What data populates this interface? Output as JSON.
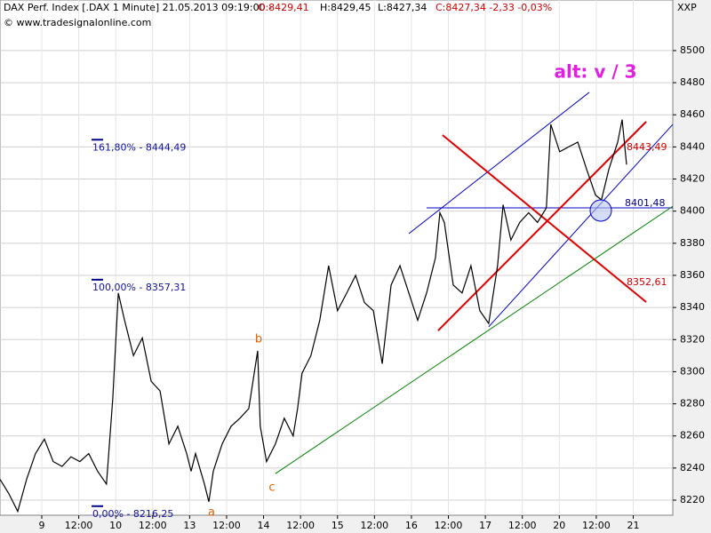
{
  "chart_data": {
    "type": "line",
    "title": "DAX Perf. Index [.DAX  1 Minute] 21.05.2013 09:19:00 -",
    "quote_open": "O:8429,41",
    "quote_high": "H:8429,45",
    "quote_low": "L:8427,34",
    "quote_close": "C:8427,34 -2,33 -0,03%",
    "subtitle": "© www.tradesignalonline.com",
    "axis_name": "XXP",
    "annotation": "alt: v / 3",
    "wave_labels": [
      "a",
      "b",
      "c"
    ],
    "level_labels": [
      "8443,49",
      "8352,61",
      "8401,48"
    ],
    "grid": true,
    "xlim": [
      -1.13,
      17.07
    ],
    "ylim": [
      8210.6,
      8531.5
    ],
    "xticks": [
      {
        "value": 0,
        "label": "9"
      },
      {
        "value": 1,
        "label": "12:00"
      },
      {
        "value": 2,
        "label": "10"
      },
      {
        "value": 3,
        "label": "12:00"
      },
      {
        "value": 4,
        "label": "13"
      },
      {
        "value": 5,
        "label": "12:00"
      },
      {
        "value": 6,
        "label": "14"
      },
      {
        "value": 7,
        "label": "12:00"
      },
      {
        "value": 8,
        "label": "15"
      },
      {
        "value": 9,
        "label": "12:00"
      },
      {
        "value": 10,
        "label": "16"
      },
      {
        "value": 11,
        "label": "12:00"
      },
      {
        "value": 12,
        "label": "17"
      },
      {
        "value": 13,
        "label": "12:00"
      },
      {
        "value": 14,
        "label": "20"
      },
      {
        "value": 15,
        "label": "12:00"
      },
      {
        "value": 16,
        "label": "21"
      }
    ],
    "yticks": [
      8220,
      8240,
      8260,
      8280,
      8300,
      8320,
      8340,
      8360,
      8380,
      8400,
      8420,
      8440,
      8460,
      8480,
      8500
    ],
    "series": [
      {
        "color": "#000000",
        "x": [
          -1.13,
          -0.89,
          -0.65,
          -0.41,
          -0.17,
          0.07,
          0.31,
          0.55,
          0.79,
          1.03,
          1.27,
          1.51,
          1.75,
          1.92,
          2.07,
          2.24,
          2.48,
          2.72,
          2.96,
          3.2,
          3.44,
          3.68,
          3.92,
          4.04,
          4.16,
          4.4,
          4.52,
          4.64,
          4.88,
          5.12,
          5.36,
          5.6,
          5.84,
          5.91,
          6.08,
          6.32,
          6.56,
          6.8,
          6.92,
          7.04,
          7.28,
          7.52,
          7.76,
          8.0,
          8.25,
          8.49,
          8.73,
          8.97,
          9.21,
          9.45,
          9.69,
          9.93,
          10.17,
          10.41,
          10.65,
          10.77,
          10.89,
          11.13,
          11.37,
          11.61,
          11.85,
          12.09,
          12.33,
          12.48,
          12.69,
          12.93,
          13.17,
          13.41,
          13.65,
          13.77,
          14.01,
          14.25,
          14.5,
          14.74,
          14.98,
          15.14,
          15.34,
          15.58,
          15.7,
          15.82
        ],
        "values": [
          8233,
          8224,
          8213,
          8233,
          8249,
          8258,
          8244,
          8241,
          8247,
          8244,
          8249,
          8238,
          8230,
          8283,
          8349,
          8332,
          8310,
          8321,
          8294,
          8288,
          8255,
          8266,
          8249,
          8238,
          8249,
          8230,
          8219,
          8238,
          8255,
          8266,
          8271,
          8277,
          8313,
          8266,
          8244,
          8255,
          8271,
          8260,
          8277,
          8299,
          8310,
          8332,
          8366,
          8338,
          8349,
          8360,
          8343,
          8338,
          8305,
          8354,
          8366,
          8349,
          8332,
          8349,
          8371,
          8399,
          8393,
          8354,
          8349,
          8366,
          8338,
          8330,
          8366,
          8404,
          8382,
          8393,
          8399,
          8393,
          8402,
          8454,
          8437,
          8440,
          8443,
          8426,
          8410,
          8407,
          8426,
          8443,
          8457,
          8429
        ]
      }
    ],
    "fib_levels": [
      {
        "value": 8444.49,
        "label": "161,80% - 8444,49"
      },
      {
        "value": 8357.31,
        "label": "100,00% - 8357,31"
      },
      {
        "value": 8216.25,
        "label": "0,00% - 8216,25"
      }
    ],
    "trendlines": [
      {
        "color": "#0000cc",
        "x": [
          10.41,
          17.07
        ],
        "y": [
          8402,
          8402
        ]
      },
      {
        "color": "#0000cc",
        "x": [
          9.93,
          14.81
        ],
        "y": [
          8386,
          8474
        ]
      },
      {
        "color": "#0000cc",
        "x": [
          12.09,
          17.07
        ],
        "y": [
          8328,
          8454
        ]
      },
      {
        "color": "#008000",
        "x": [
          6.32,
          17.07
        ],
        "y": [
          8236.5,
          8403
        ]
      },
      {
        "color": "#e00000",
        "x": [
          10.84,
          16.35
        ],
        "y": [
          8447.4,
          8343.4
        ]
      },
      {
        "color": "#e00000",
        "x": [
          10.72,
          16.35
        ],
        "y": [
          8325.6,
          8455.7
        ]
      }
    ]
  }
}
